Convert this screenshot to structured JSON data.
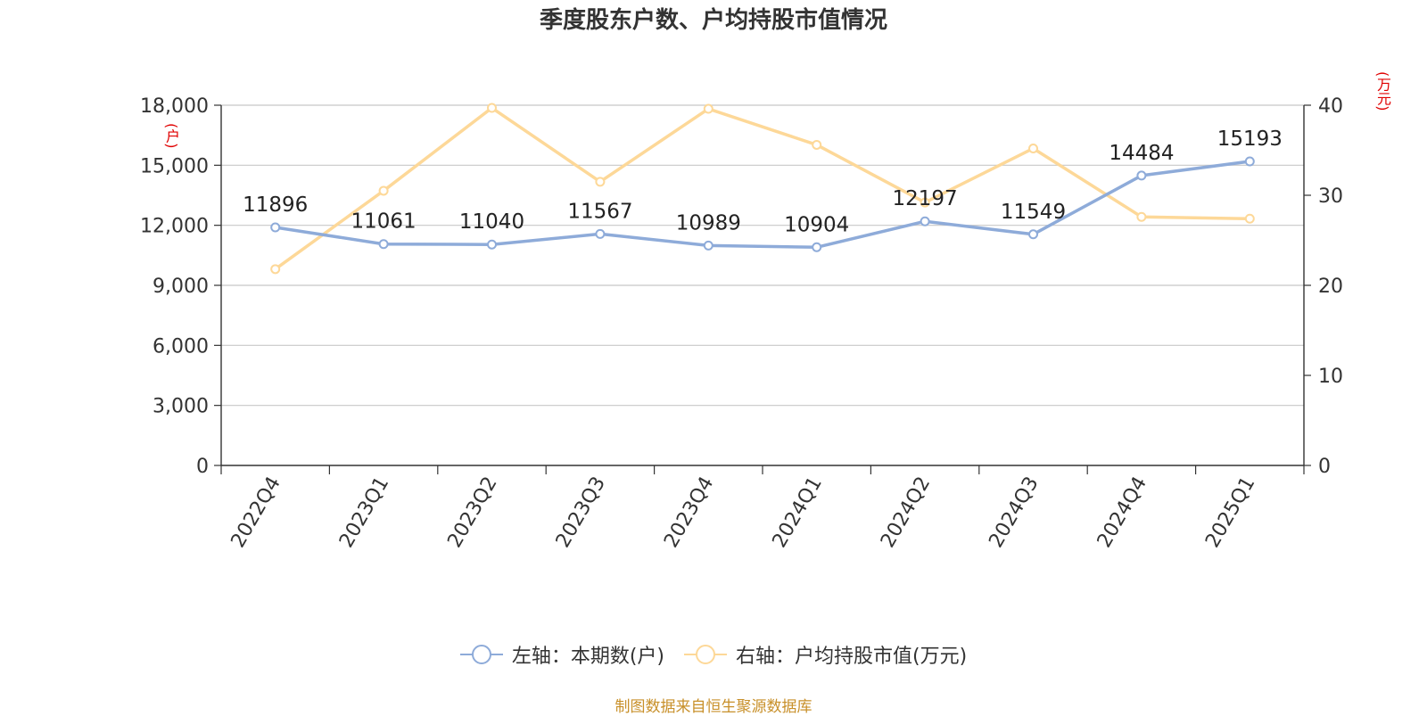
{
  "title": "季度股东户数、户均持股市值情况",
  "left_axis_unit": "(户)",
  "right_axis_unit": "(万元)",
  "source": "制图数据来自恒生聚源数据库",
  "chart_data": {
    "type": "line",
    "title": "季度股东户数、户均持股市值情况",
    "categories": [
      "2022Q4",
      "2023Q1",
      "2023Q2",
      "2023Q3",
      "2023Q4",
      "2024Q1",
      "2024Q2",
      "2024Q3",
      "2024Q4",
      "2025Q1"
    ],
    "y_left": {
      "ylim": [
        0,
        18000
      ],
      "ticks": [
        "0",
        "3,000",
        "6,000",
        "9,000",
        "12,000",
        "15,000",
        "18,000"
      ],
      "tick_values": [
        0,
        3000,
        6000,
        9000,
        12000,
        15000,
        18000
      ]
    },
    "y_right": {
      "ylim": [
        0,
        40
      ],
      "ticks": [
        "0",
        "10",
        "20",
        "30",
        "40"
      ],
      "tick_values": [
        0,
        10,
        20,
        30,
        40
      ]
    },
    "grid": true,
    "legend_position": "bottom",
    "series": [
      {
        "name": "左轴：本期数(户)",
        "axis": "left",
        "color": "#8eabd9",
        "values": [
          11896,
          11061,
          11040,
          11567,
          10989,
          10904,
          12197,
          11549,
          14484,
          15193
        ],
        "labels": [
          "11896",
          "11061",
          "11040",
          "11567",
          "10989",
          "10904",
          "12197",
          "11549",
          "14484",
          "15193"
        ]
      },
      {
        "name": "右轴：户均持股市值(万元)",
        "axis": "right",
        "color": "#fdd898",
        "values": [
          21.8,
          30.5,
          39.7,
          31.5,
          39.6,
          35.6,
          29.2,
          35.2,
          27.6,
          27.4
        ]
      }
    ]
  }
}
